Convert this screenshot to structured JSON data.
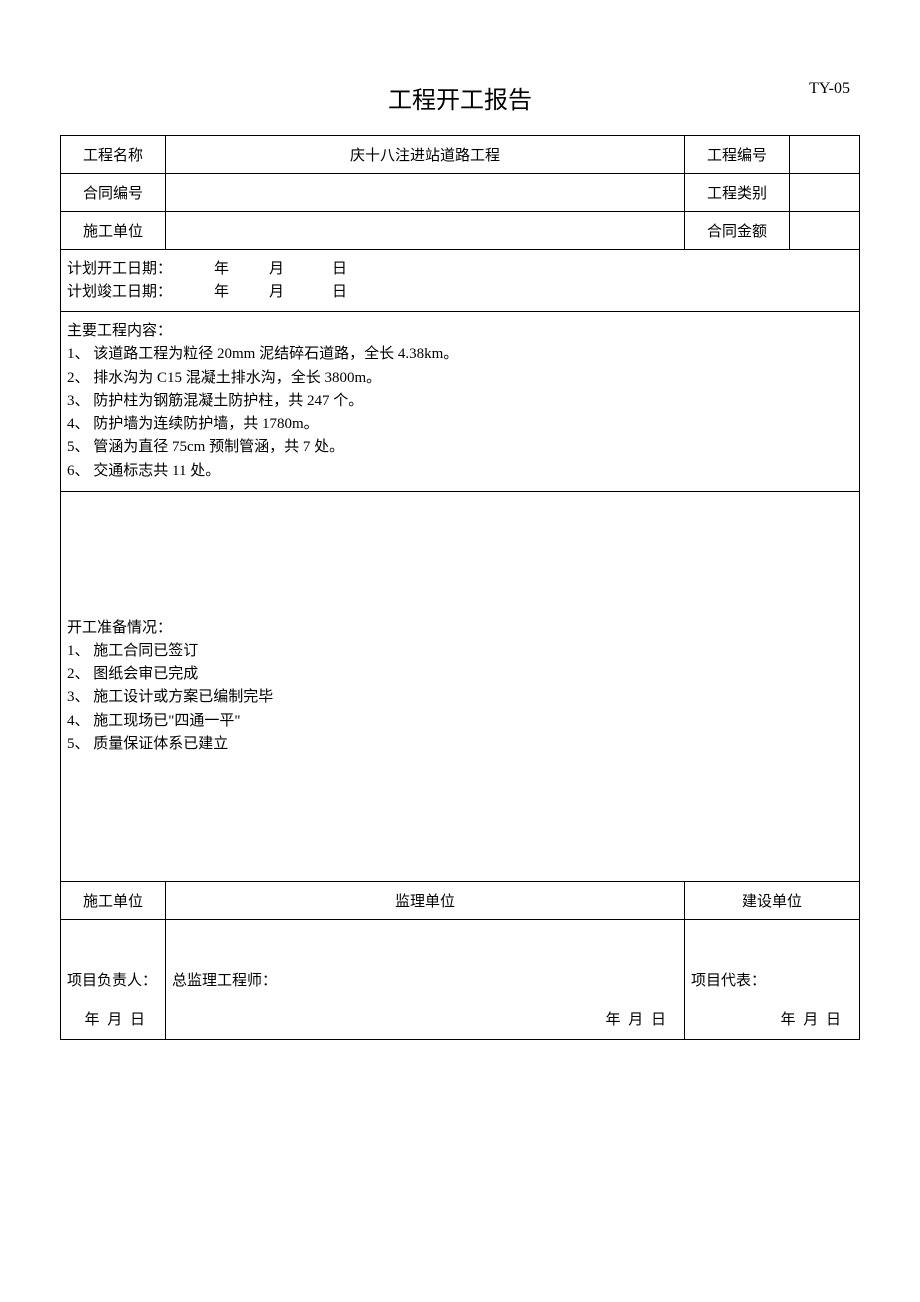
{
  "doc": {
    "title": "工程开工报告",
    "code": "TY-05"
  },
  "fields": {
    "project_name_label": "工程名称",
    "project_name_value": "庆十八注进站道路工程",
    "project_no_label": "工程编号",
    "project_no_value": "",
    "contract_no_label": "合同编号",
    "contract_no_value": "",
    "project_type_label": "工程类别",
    "project_type_value": "",
    "contractor_label": "施工单位",
    "contractor_value": "",
    "contract_amount_label": "合同金额",
    "contract_amount_value": ""
  },
  "dates": {
    "planned_start_label": "计划开工日期：",
    "planned_end_label": "计划竣工日期：",
    "year": "年",
    "month": "月",
    "day": "日"
  },
  "main_content": {
    "heading": "主要工程内容：",
    "items": [
      "1、 该道路工程为粒径 20mm 泥结碎石道路，全长 4.38km。",
      "2、 排水沟为 C15 混凝土排水沟，全长 3800m。",
      "3、 防护柱为钢筋混凝土防护柱，共 247 个。",
      "4、 防护墙为连续防护墙，共 1780m。",
      "5、 管涵为直径 75cm 预制管涵，共 7 处。",
      "6、 交通标志共 11 处。"
    ]
  },
  "prep_status": {
    "heading": "开工准备情况：",
    "items": [
      "1、 施工合同已签订",
      "2、 图纸会审已完成",
      "3、 施工设计或方案已编制完毕",
      "4、 施工现场已\"四通一平\"",
      "5、 质量保证体系已建立"
    ]
  },
  "signatures": {
    "contractor_header": "施工单位",
    "supervisor_header": "监理单位",
    "owner_header": "建设单位",
    "contractor_role": "项目负责人：",
    "supervisor_role": "总监理工程师：",
    "owner_role": "项目代表：",
    "date_ymd": "年  月  日"
  }
}
